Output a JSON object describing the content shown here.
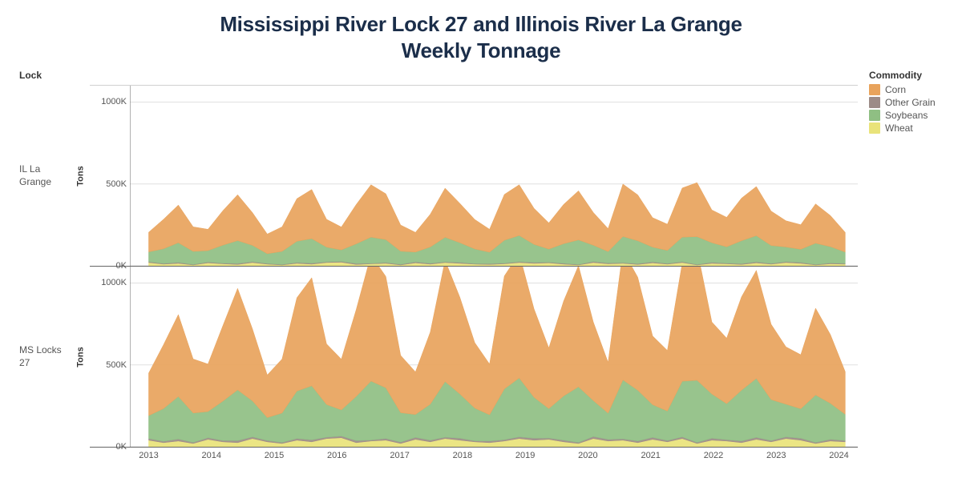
{
  "title_line1": "Mississippi River Lock 27 and Illinois River La Grange",
  "title_line2": "Weekly Tonnage",
  "title_fontsize": 26,
  "title_color": "#1b2e4a",
  "background_color": "#ffffff",
  "grid_color": "#e0e0e0",
  "axis_color": "#666666",
  "legend": {
    "title": "Commodity",
    "items": [
      {
        "label": "Corn",
        "color": "#e8a35c"
      },
      {
        "label": "Other Grain",
        "color": "#9c8b87"
      },
      {
        "label": "Soybeans",
        "color": "#8fbf83"
      },
      {
        "label": "Wheat",
        "color": "#e9e37a"
      }
    ]
  },
  "row_header": "Lock",
  "ylabel": "Tons",
  "ylabel_fontsize": 11,
  "ylim": [
    0,
    1100
  ],
  "yticks": [
    0,
    500,
    1000
  ],
  "ytick_labels": [
    "0K",
    "500K",
    "1000K"
  ],
  "x_domain": [
    2012.7,
    2024.3
  ],
  "xticks": [
    2013,
    2014,
    2015,
    2016,
    2017,
    2018,
    2019,
    2020,
    2021,
    2022,
    2023,
    2024
  ],
  "xtick_labels": [
    "2013",
    "2014",
    "2015",
    "2016",
    "2017",
    "2018",
    "2019",
    "2020",
    "2021",
    "2022",
    "2023",
    "2024"
  ],
  "panels": [
    {
      "label": "IL La\nGrange",
      "series": {
        "wheat": [
          20,
          10,
          15,
          5,
          18,
          12,
          8,
          20,
          10,
          5,
          15,
          10,
          20,
          22,
          8,
          12,
          15,
          5,
          18,
          10,
          20,
          15,
          10,
          8,
          12,
          20,
          15,
          18,
          10,
          5,
          20,
          12,
          15,
          8,
          18,
          10,
          20,
          5,
          15,
          12,
          8,
          18,
          10,
          20,
          15,
          5,
          12,
          10
        ],
        "other": [
          5,
          4,
          6,
          3,
          5,
          4,
          6,
          5,
          4,
          3,
          5,
          6,
          4,
          5,
          6,
          3,
          5,
          4,
          6,
          5,
          4,
          6,
          3,
          5,
          4,
          5,
          6,
          4,
          5,
          3,
          6,
          5,
          4,
          5,
          6,
          4,
          5,
          3,
          6,
          4,
          5,
          6,
          4,
          5,
          6,
          3,
          5,
          4
        ],
        "soybeans": [
          60,
          90,
          120,
          80,
          70,
          110,
          140,
          100,
          60,
          80,
          130,
          150,
          90,
          70,
          120,
          160,
          140,
          80,
          60,
          100,
          150,
          120,
          90,
          70,
          140,
          160,
          110,
          80,
          120,
          150,
          100,
          70,
          160,
          140,
          90,
          80,
          150,
          170,
          120,
          100,
          140,
          160,
          110,
          90,
          80,
          130,
          100,
          70
        ],
        "corn": [
          120,
          180,
          230,
          150,
          130,
          210,
          280,
          200,
          120,
          150,
          260,
          300,
          170,
          140,
          240,
          320,
          280,
          160,
          120,
          200,
          300,
          240,
          180,
          140,
          280,
          310,
          220,
          160,
          240,
          300,
          200,
          140,
          320,
          280,
          180,
          160,
          300,
          330,
          200,
          180,
          260,
          300,
          210,
          160,
          150,
          240,
          190,
          120
        ]
      }
    },
    {
      "label": "MS Locks\n27",
      "series": {
        "wheat": [
          40,
          25,
          35,
          20,
          45,
          30,
          25,
          50,
          30,
          20,
          40,
          30,
          50,
          55,
          25,
          35,
          40,
          20,
          45,
          30,
          50,
          40,
          30,
          25,
          35,
          50,
          40,
          45,
          30,
          20,
          50,
          35,
          40,
          25,
          45,
          30,
          50,
          20,
          40,
          35,
          25,
          45,
          30,
          50,
          40,
          20,
          35,
          30
        ],
        "other": [
          10,
          8,
          12,
          6,
          10,
          8,
          12,
          10,
          8,
          6,
          10,
          12,
          8,
          10,
          12,
          6,
          10,
          8,
          12,
          10,
          8,
          12,
          6,
          10,
          8,
          10,
          12,
          8,
          10,
          6,
          12,
          10,
          8,
          10,
          12,
          8,
          10,
          6,
          12,
          8,
          10,
          12,
          8,
          10,
          12,
          6,
          10,
          8
        ],
        "soybeans": [
          140,
          200,
          260,
          180,
          160,
          240,
          310,
          220,
          140,
          180,
          290,
          330,
          200,
          160,
          270,
          360,
          310,
          180,
          140,
          220,
          340,
          270,
          200,
          160,
          310,
          360,
          250,
          180,
          270,
          340,
          220,
          160,
          360,
          310,
          200,
          180,
          340,
          380,
          270,
          220,
          310,
          360,
          250,
          200,
          180,
          290,
          220,
          160
        ],
        "corn": [
          260,
          390,
          500,
          330,
          290,
          460,
          620,
          440,
          260,
          330,
          570,
          660,
          370,
          310,
          530,
          770,
          680,
          350,
          260,
          440,
          740,
          590,
          400,
          310,
          690,
          760,
          540,
          370,
          580,
          740,
          480,
          310,
          790,
          690,
          420,
          370,
          720,
          800,
          440,
          400,
          570,
          660,
          460,
          350,
          330,
          530,
          420,
          260
        ]
      }
    }
  ],
  "weeks_per_tick": 4
}
